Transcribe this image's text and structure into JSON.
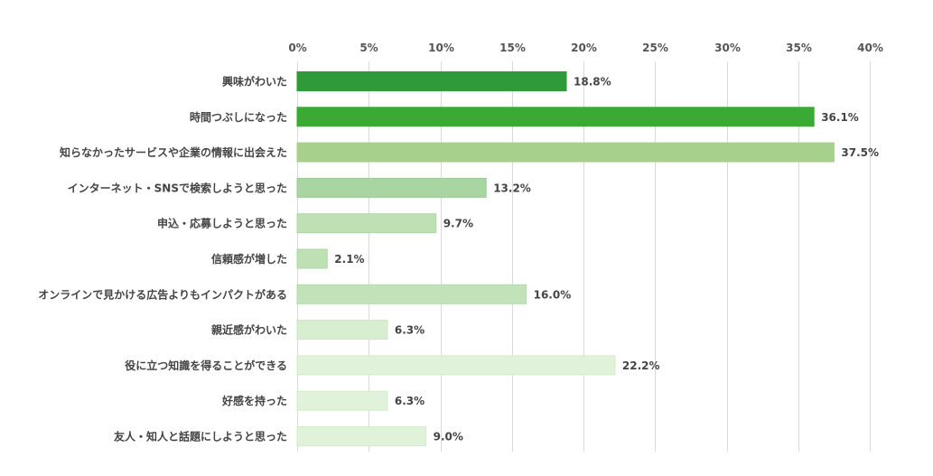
{
  "chart_data": {
    "type": "bar",
    "orientation": "horizontal",
    "title": "",
    "xlabel": "",
    "ylabel": "",
    "xlim": [
      0,
      40
    ],
    "grid": true,
    "x_ticks": [
      "0%",
      "5%",
      "10%",
      "15%",
      "20%",
      "25%",
      "30%",
      "35%",
      "40%"
    ],
    "categories": [
      "興味がわいた",
      "時間つぶしになった",
      "知らなかったサービスや企業の情報に出会えた",
      "インターネット・SNSで検索しようと思った",
      "申込・応募しようと思った",
      "信頼感が増した",
      "オンラインで見かける広告よりもインパクトがある",
      "親近感がわいた",
      "役に立つ知識を得ることができる",
      "好感を持った",
      "友人・知人と話題にしようと思った"
    ],
    "values": [
      18.8,
      36.1,
      37.5,
      13.2,
      9.7,
      2.1,
      16.0,
      6.3,
      22.2,
      6.3,
      9.0
    ],
    "value_labels": [
      "18.8%",
      "36.1%",
      "37.5%",
      "13.2%",
      "9.7%",
      "2.1%",
      "16.0%",
      "6.3%",
      "22.2%",
      "6.3%",
      "9.0%"
    ],
    "bar_colors": [
      "#2e9a3a",
      "#3aaa35",
      "#a8d08d",
      "#a9d5a3",
      "#bde0b4",
      "#bde0b4",
      "#c2e2b9",
      "#d7eed0",
      "#e0f2da",
      "#e0f2da",
      "#e0f2da"
    ],
    "bar_border_colors": [
      "#2e9a3a",
      "#3aaa35",
      "#a8d08d",
      "#9ccc95",
      "#afd8a6",
      "#afd8a6",
      "#b3dbaa",
      "#cbe7c2",
      "#d3ecca",
      "#d3ecca",
      "#d3ecca"
    ]
  }
}
